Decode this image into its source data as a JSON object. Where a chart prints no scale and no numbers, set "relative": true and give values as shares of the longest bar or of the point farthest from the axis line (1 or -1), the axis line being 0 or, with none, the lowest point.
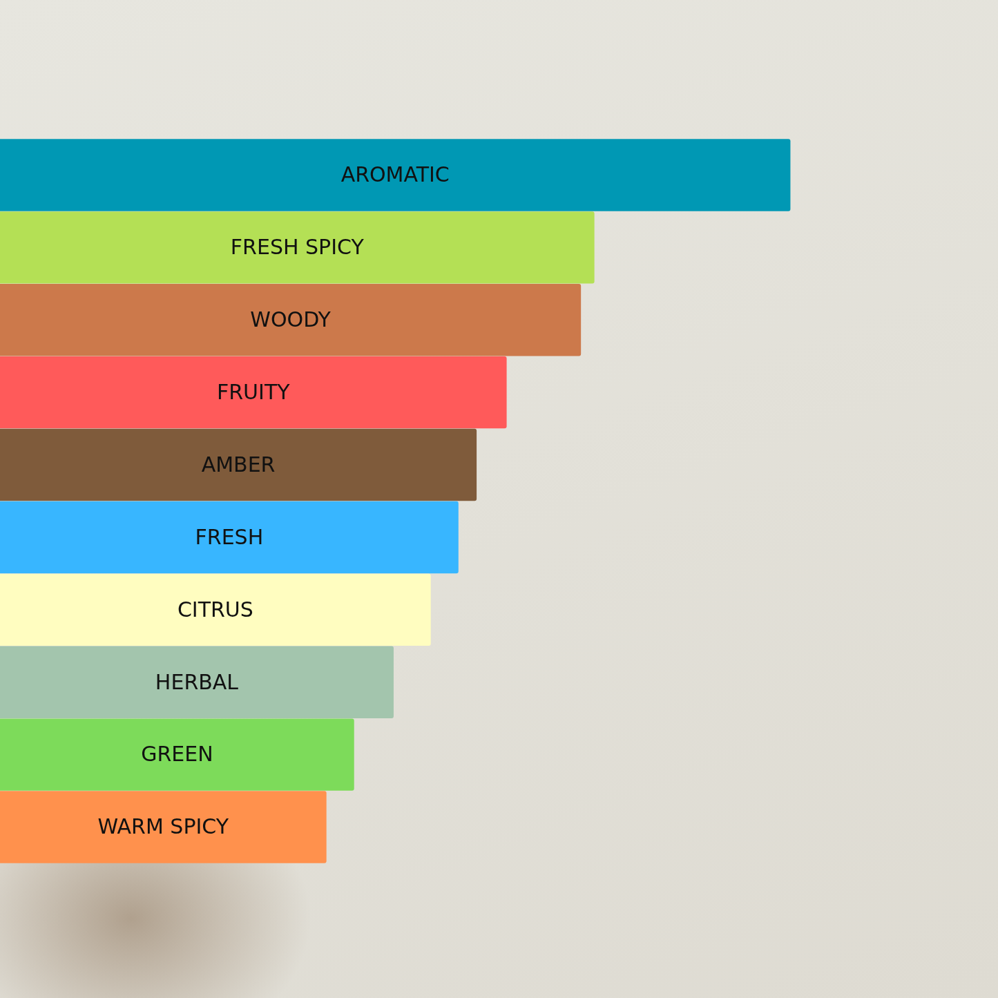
{
  "chart_data": {
    "type": "bar",
    "orientation": "horizontal",
    "relative": true,
    "categories": [
      "AROMATIC",
      "FRESH SPICY",
      "WOODY",
      "FRUITY",
      "AMBER",
      "FRESH",
      "CITRUS",
      "HERBAL",
      "GREEN",
      "WARM SPICY"
    ],
    "values": [
      1,
      0.752,
      0.735,
      0.641,
      0.603,
      0.58,
      0.545,
      0.498,
      0.448,
      0.413
    ],
    "colors": [
      "#0098b4",
      "#b4e055",
      "#cc794b",
      "#ff5a5a",
      "#7f5b3b",
      "#38b6ff",
      "#fffdc0",
      "#a3c5ad",
      "#7ddb5a",
      "#ff914d"
    ]
  }
}
